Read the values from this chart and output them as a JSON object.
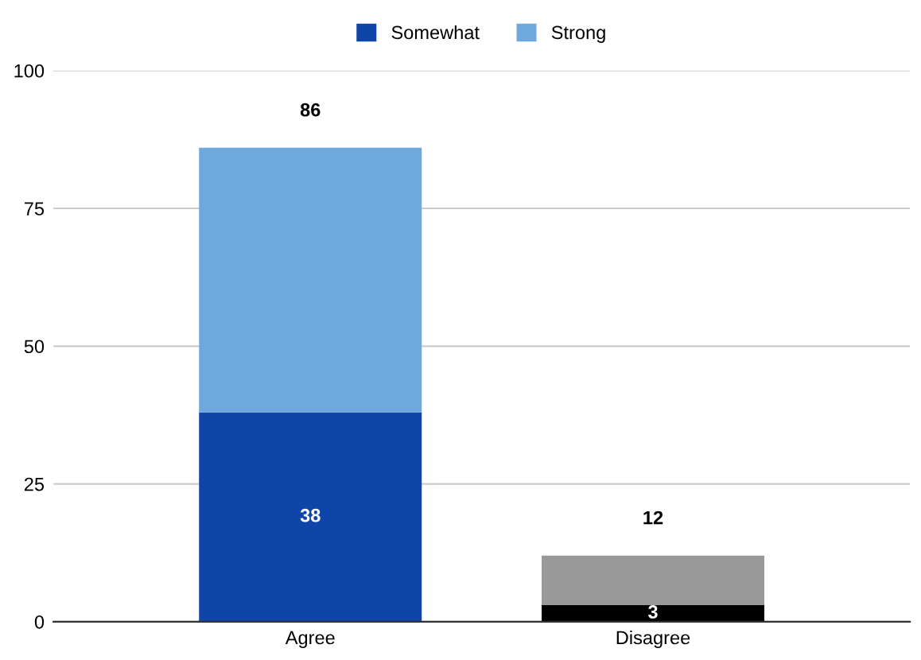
{
  "chart_data": {
    "type": "bar",
    "stacked": true,
    "categories": [
      "Agree",
      "Disagree"
    ],
    "series": [
      {
        "name": "Somewhat",
        "color": "#0f45a8",
        "colors": [
          "#0f45a8",
          "#000000"
        ],
        "values": [
          38,
          3
        ],
        "value_labels": [
          "38",
          "3"
        ]
      },
      {
        "name": "Strong",
        "color": "#6fa8dc",
        "colors": [
          "#6fa8dc",
          "#999999"
        ],
        "values": [
          48,
          9
        ]
      }
    ],
    "totals": [
      "86",
      "12"
    ],
    "ylim": [
      0,
      100
    ],
    "yticks": [
      0,
      25,
      50,
      75,
      100
    ],
    "grid": "y",
    "legend": "top"
  }
}
